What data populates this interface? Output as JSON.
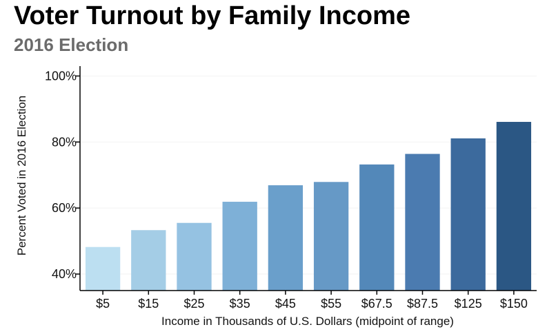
{
  "chart_data": {
    "type": "bar",
    "title": "Voter Turnout by Family Income",
    "subtitle": "2016 Election",
    "xlabel": "Income in Thousands of U.S. Dollars (midpoint of range)",
    "ylabel": "Percent Voted in 2016 Election",
    "categories": [
      "$5",
      "$15",
      "$25",
      "$35",
      "$45",
      "$55",
      "$67.5",
      "$87.5",
      "$125",
      "$150"
    ],
    "values": [
      48.2,
      53.3,
      55.5,
      61.9,
      66.9,
      67.9,
      73.2,
      76.4,
      81.1,
      86.1
    ],
    "ylim": [
      35,
      103
    ],
    "yticks": [
      40,
      60,
      80,
      100
    ],
    "ytick_labels": [
      "40%",
      "60%",
      "80%",
      "100%"
    ],
    "grid": true,
    "colors": [
      "#bcdff1",
      "#a4cde6",
      "#95c2e2",
      "#7eb0d7",
      "#6a9fcb",
      "#6699c6",
      "#5388b9",
      "#4b7bb0",
      "#3c6a9d",
      "#2b5784"
    ]
  }
}
